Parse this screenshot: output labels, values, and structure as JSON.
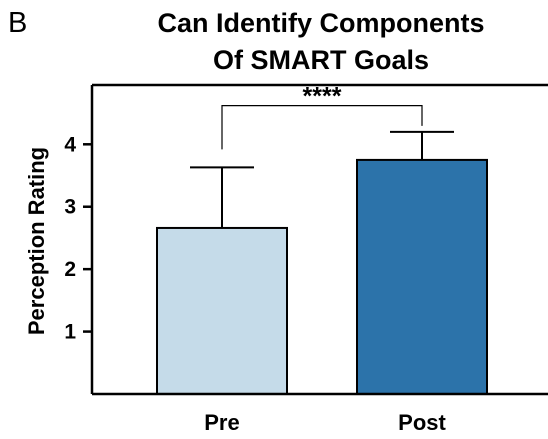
{
  "panel_label": "B",
  "chart_data": {
    "type": "bar",
    "title_lines": [
      "Can Identify Components",
      "Of SMART Goals"
    ],
    "ylabel": "Perception Rating",
    "xlabel": "",
    "categories": [
      "Pre",
      "Post"
    ],
    "values": [
      2.66,
      3.75
    ],
    "error_upper": [
      0.97,
      0.45
    ],
    "colors": [
      "#c5dbe9",
      "#2c73aa"
    ],
    "ylim": [
      0,
      4.95
    ],
    "yticks": [
      1,
      2,
      3,
      4
    ],
    "grid": false,
    "significance": {
      "between": [
        0,
        1
      ],
      "label": "****",
      "level": 4.62
    }
  }
}
